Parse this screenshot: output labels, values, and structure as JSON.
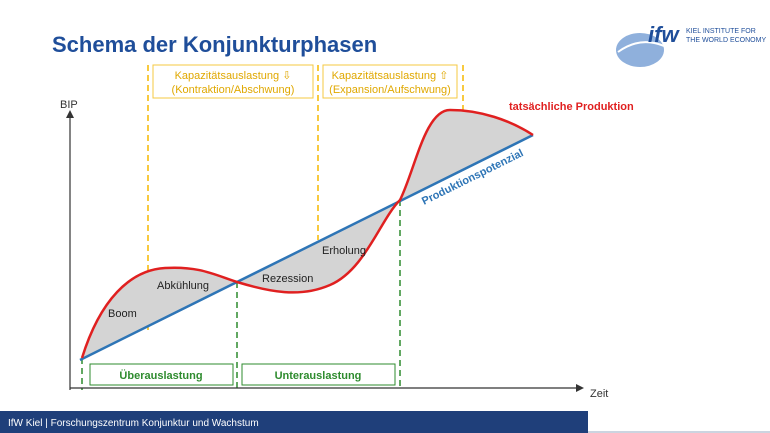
{
  "header": {
    "title": "Schema der Konjunkturphasen",
    "logo": {
      "mark": "ifw",
      "line1": "KIEL INSTITUTE FOR",
      "line2": "THE WORLD ECONOMY"
    }
  },
  "diagram": {
    "y_axis": "BIP",
    "x_axis": "Zeit",
    "actual": "tatsächliche Produktion",
    "potential": "Produktionspotenzial",
    "top_boxes": [
      {
        "line1": "Kapazitätsauslastung ⇩",
        "line2": "(Kontraktion/Abschwung)"
      },
      {
        "line1": "Kapazitätsauslastung ⇧",
        "line2": "(Expansion/Aufschwung)"
      }
    ],
    "phases": [
      "Boom",
      "Abkühlung",
      "Rezession",
      "Erholung"
    ],
    "bottom_boxes": [
      "Überauslastung",
      "Unterauslastung"
    ]
  },
  "footer": "IfW Kiel | Forschungszentrum Konjunktur und Wachstum"
}
